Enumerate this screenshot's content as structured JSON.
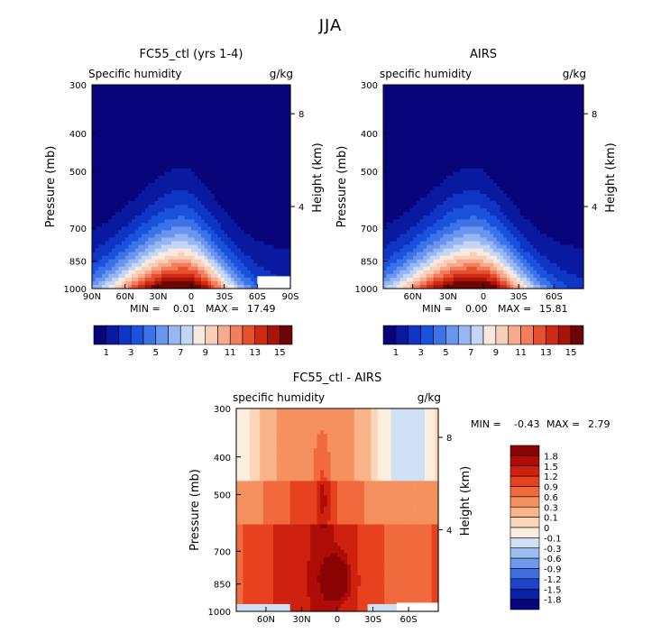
{
  "page_title": "JJA",
  "chart_data": [
    {
      "type": "heatmap",
      "title": "FC55_ctl (yrs 1-4)",
      "left_label": "Specific humidity",
      "right_label": "g/kg",
      "ylabel": "Pressure (mb)",
      "y2label": "Height (km)",
      "pressure_ticks": [
        "300",
        "400",
        "500",
        "700",
        "850",
        "1000"
      ],
      "height_ticks": [
        "8",
        "4"
      ],
      "lat_ticks": [
        "90N",
        "60N",
        "30N",
        "0",
        "30S",
        "60S",
        "90S"
      ],
      "xlim": [
        90,
        -90
      ],
      "ylim": [
        1000,
        300
      ],
      "stats": {
        "min_label": "MIN =",
        "min": "0.01",
        "max_label": "MAX =",
        "max": "17.49"
      },
      "peak_lat": 8,
      "colorbar": {
        "orientation": "horizontal",
        "labels": [
          "1",
          "3",
          "5",
          "7",
          "9",
          "11",
          "13",
          "15"
        ],
        "colors": [
          "#08057a",
          "#0a1aa0",
          "#0f35c4",
          "#1a52dd",
          "#3d73e8",
          "#6a95ee",
          "#97b6f2",
          "#c3d6f6",
          "#f7e9df",
          "#f9cfb9",
          "#f6ab8f",
          "#f07e5f",
          "#e6502f",
          "#cf2a15",
          "#a81407",
          "#6e0505"
        ]
      },
      "no_data_region": {
        "lat_from": -60,
        "lat_to": -90,
        "pressure_top": 930
      }
    },
    {
      "type": "heatmap",
      "title": "AIRS",
      "left_label": "specific humidity",
      "right_label": "g/kg",
      "ylabel": "Pressure (mb)",
      "y2label": "Height (km)",
      "pressure_ticks": [
        "300",
        "400",
        "500",
        "700",
        "850",
        "1000"
      ],
      "height_ticks": [
        "8",
        "4"
      ],
      "lat_ticks": [
        "60N",
        "30N",
        "0",
        "30S",
        "60S"
      ],
      "xlim": [
        85,
        -85
      ],
      "ylim": [
        1000,
        300
      ],
      "stats": {
        "min_label": "MIN =",
        "min": "0.00",
        "max_label": "MAX =",
        "max": "15.81"
      },
      "peak_lat": 8,
      "colorbar": {
        "orientation": "horizontal",
        "labels": [
          "1",
          "3",
          "5",
          "7",
          "9",
          "11",
          "13",
          "15"
        ],
        "colors": [
          "#08057a",
          "#0a1aa0",
          "#0f35c4",
          "#1a52dd",
          "#3d73e8",
          "#6a95ee",
          "#97b6f2",
          "#c3d6f6",
          "#f7e9df",
          "#f9cfb9",
          "#f6ab8f",
          "#f07e5f",
          "#e6502f",
          "#cf2a15",
          "#a81407",
          "#6e0505"
        ]
      }
    },
    {
      "type": "heatmap",
      "title": "FC55_ctl - AIRS",
      "left_label": "specific humidity",
      "right_label": "g/kg",
      "ylabel": "Pressure (mb)",
      "y2label": "Height (km)",
      "pressure_ticks": [
        "300",
        "400",
        "500",
        "700",
        "850",
        "1000"
      ],
      "height_ticks": [
        "8",
        "4"
      ],
      "lat_ticks": [
        "60N",
        "30N",
        "0",
        "30S",
        "60S"
      ],
      "xlim": [
        85,
        -85
      ],
      "ylim": [
        1000,
        300
      ],
      "stats": {
        "min_label": "MIN =",
        "min": "-0.43",
        "max_label": "MAX =",
        "max": "2.79"
      },
      "colorbar": {
        "orientation": "vertical",
        "labels": [
          "1.8",
          "1.5",
          "1.2",
          "0.9",
          "0.6",
          "0.3",
          "0.1",
          "0",
          "-0.1",
          "-0.3",
          "-0.6",
          "-0.9",
          "-1.2",
          "-1.5",
          "-1.8"
        ],
        "colors": [
          "#8a0303",
          "#ad0d06",
          "#cf210f",
          "#e6421f",
          "#f06a3e",
          "#f5905f",
          "#f9b589",
          "#fbd6b8",
          "#fbeedf",
          "#cfdff4",
          "#9cbdf2",
          "#6f99ec",
          "#3f6ee3",
          "#1d45cc",
          "#0a22a8",
          "#06067c"
        ]
      },
      "no_data_region": {
        "lat_from": -50,
        "lat_to": -85,
        "pressure_top": 950
      }
    }
  ]
}
